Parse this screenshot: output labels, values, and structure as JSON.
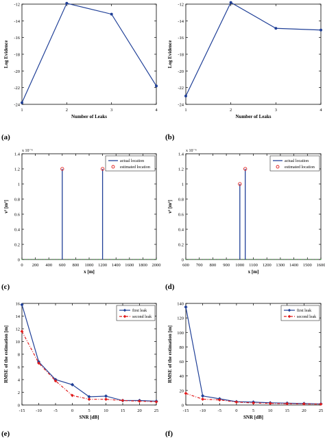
{
  "colors": {
    "series_primary": "#1f3f97",
    "series_secondary": "#e01b1b",
    "axis": "#000000",
    "baseline_marks": "#2ca02c"
  },
  "panel_labels": [
    "(a)",
    "(b)",
    "(c)",
    "(d)",
    "(e)",
    "(f)"
  ],
  "chart_data": [
    {
      "panel": "(a)",
      "type": "line",
      "xlabel": "Number of Leaks",
      "ylabel": "Log Evidence",
      "xlim": [
        1,
        4
      ],
      "ylim": [
        -24,
        -12
      ],
      "xticks": [
        1,
        2,
        3,
        4
      ],
      "yticks": [
        -24,
        -22,
        -20,
        -18,
        -16,
        -14,
        -12
      ],
      "grid": false,
      "series": [
        {
          "x": [
            1,
            2,
            3,
            4
          ],
          "values": [
            -23.8,
            -11.9,
            -13.2,
            -21.8
          ],
          "marker": "circle"
        }
      ]
    },
    {
      "panel": "(b)",
      "type": "line",
      "xlabel": "Number of Leaks",
      "ylabel": "Log Evidence",
      "xlim": [
        1,
        4
      ],
      "ylim": [
        -24,
        -12
      ],
      "xticks": [
        1,
        2,
        3,
        4
      ],
      "yticks": [
        -24,
        -22,
        -20,
        -18,
        -16,
        -14,
        -12
      ],
      "grid": false,
      "series": [
        {
          "x": [
            1,
            2,
            3,
            4
          ],
          "values": [
            -23.0,
            -11.8,
            -14.9,
            -15.1
          ],
          "marker": "circle"
        }
      ]
    },
    {
      "panel": "(c)",
      "type": "stem",
      "xlabel": "x [m]",
      "ylabel": "ν² [m²]",
      "y_exponent": "x 10⁻⁶",
      "xlim": [
        0,
        2000
      ],
      "ylim": [
        0,
        1.4
      ],
      "xticks": [
        0,
        200,
        400,
        600,
        800,
        1000,
        1200,
        1400,
        1600,
        1800,
        2000
      ],
      "yticks": [
        0,
        0.2,
        0.4,
        0.6,
        0.8,
        1,
        1.2,
        1.4
      ],
      "legend_position": "top-right",
      "series": [
        {
          "name": "actual location",
          "style": "stem",
          "x": [
            600,
            1200
          ],
          "values": [
            1.2,
            1.2
          ]
        },
        {
          "name": "estimated location",
          "style": "marker",
          "x": [
            600,
            1200
          ],
          "values": [
            1.2,
            1.2
          ]
        }
      ]
    },
    {
      "panel": "(d)",
      "type": "stem",
      "xlabel": "x [m]",
      "ylabel": "ν² [m²]",
      "y_exponent": "x 10⁻⁶",
      "xlim": [
        600,
        1600
      ],
      "ylim": [
        0,
        1.4
      ],
      "xticks": [
        600,
        700,
        800,
        900,
        1000,
        1100,
        1200,
        1300,
        1400,
        1500,
        1600
      ],
      "yticks": [
        0,
        0.2,
        0.4,
        0.6,
        0.8,
        1,
        1.2,
        1.4
      ],
      "legend_position": "top-right",
      "series": [
        {
          "name": "actual location",
          "style": "stem",
          "x": [
            1000,
            1040
          ],
          "values": [
            1.0,
            1.2
          ]
        },
        {
          "name": "estimated location",
          "style": "marker",
          "x": [
            1000,
            1040
          ],
          "values": [
            1.0,
            1.2
          ]
        }
      ]
    },
    {
      "panel": "(e)",
      "type": "line",
      "xlabel": "SNR [dB]",
      "ylabel": "RMSE of the estimation [m]",
      "xlim": [
        -15,
        25
      ],
      "ylim": [
        0,
        16
      ],
      "xticks": [
        -15,
        -10,
        -5,
        0,
        5,
        10,
        15,
        20,
        25
      ],
      "yticks": [
        0,
        2,
        4,
        6,
        8,
        10,
        12,
        14,
        16
      ],
      "legend_position": "top-right",
      "series": [
        {
          "name": "first leak",
          "x": [
            -15,
            -10,
            -5,
            0,
            5,
            10,
            15,
            20,
            25
          ],
          "values": [
            15.8,
            6.8,
            4.0,
            3.2,
            1.3,
            1.4,
            0.7,
            0.7,
            0.6
          ]
        },
        {
          "name": "second leak",
          "x": [
            -15,
            -10,
            -5,
            0,
            5,
            10,
            15,
            20,
            25
          ],
          "values": [
            11.6,
            6.6,
            3.8,
            1.5,
            0.9,
            0.9,
            0.7,
            0.6,
            0.5
          ]
        }
      ]
    },
    {
      "panel": "(f)",
      "type": "line",
      "xlabel": "SNR [dB]",
      "ylabel": "RMSE of the estimation [m]",
      "xlim": [
        -15,
        25
      ],
      "ylim": [
        0,
        140
      ],
      "xticks": [
        -15,
        -10,
        -5,
        0,
        5,
        10,
        15,
        20,
        25
      ],
      "yticks": [
        0,
        20,
        40,
        60,
        80,
        100,
        120,
        140
      ],
      "legend_position": "top-right",
      "series": [
        {
          "name": "first leak",
          "x": [
            -15,
            -10,
            -5,
            0,
            5,
            10,
            15,
            20,
            25
          ],
          "values": [
            135,
            12.5,
            8.5,
            4.5,
            4.0,
            3.0,
            2.5,
            2.0,
            1.5
          ]
        },
        {
          "name": "second leak",
          "x": [
            -15,
            -10,
            -5,
            0,
            5,
            10,
            15,
            20,
            25
          ],
          "values": [
            16,
            8,
            7,
            4,
            2.8,
            2.2,
            1.8,
            1.5,
            1.2
          ]
        }
      ]
    }
  ]
}
